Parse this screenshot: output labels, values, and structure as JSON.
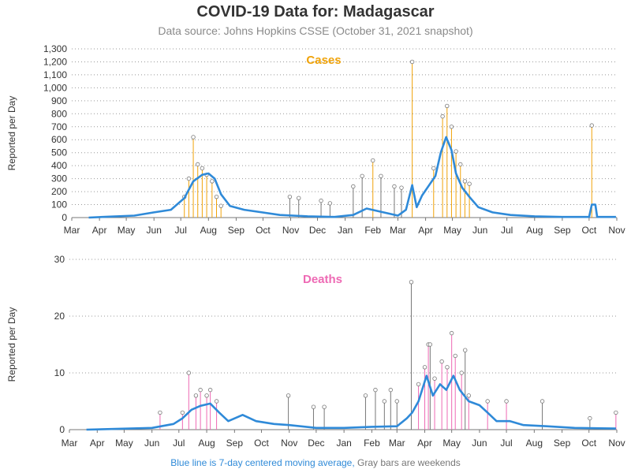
{
  "header": {
    "title": "COVID-19 Data for: Madagascar",
    "subtitle": "Data source: Johns Hopkins CSSE (October 31, 2021 snapshot)"
  },
  "footer": {
    "blue_text": "Blue line is 7-day centered moving average,",
    "gray_text": "Gray bars are weekends"
  },
  "colors": {
    "cases": "#f0a30a",
    "deaths": "#ee69b4",
    "average": "#2f8ad8",
    "weekend": "#777777"
  },
  "chart_data": [
    {
      "type": "bar",
      "title": "Cases",
      "ylabel": "Reported per Day",
      "ylim": [
        0,
        1300
      ],
      "yticks": [
        "0",
        "100",
        "200",
        "300",
        "400",
        "500",
        "600",
        "700",
        "800",
        "900",
        "1,000",
        "1,100",
        "1,200",
        "1,300"
      ],
      "ytick_values": [
        0,
        100,
        200,
        300,
        400,
        500,
        600,
        700,
        800,
        900,
        1000,
        1100,
        1200,
        1300
      ],
      "xticks": [
        "Mar",
        "Apr",
        "May",
        "Jun",
        "Jul",
        "Aug",
        "Sep",
        "Oct",
        "Nov",
        "Dec",
        "Jan",
        "Feb",
        "Mar",
        "Apr",
        "May",
        "Jun",
        "Jul",
        "Aug",
        "Sep",
        "Oct",
        "Nov"
      ],
      "x_range": [
        "2020-03-01",
        "2021-11-01"
      ],
      "grid": "horizontal dotted",
      "series": [
        {
          "name": "Daily",
          "kind": "bars",
          "points": [
            [
              "2020-07-05",
              160
            ],
            [
              "2020-07-10",
              300
            ],
            [
              "2020-07-15",
              620
            ],
            [
              "2020-07-20",
              410
            ],
            [
              "2020-07-25",
              380
            ],
            [
              "2020-07-30",
              330
            ],
            [
              "2020-08-05",
              280
            ],
            [
              "2020-08-10",
              160
            ],
            [
              "2020-08-15",
              90
            ],
            [
              "2021-02-01",
              440
            ],
            [
              "2021-03-17",
              1200
            ],
            [
              "2021-04-10",
              380
            ],
            [
              "2021-04-20",
              780
            ],
            [
              "2021-04-25",
              860
            ],
            [
              "2021-04-30",
              700
            ],
            [
              "2021-05-05",
              510
            ],
            [
              "2021-05-10",
              410
            ],
            [
              "2021-05-15",
              280
            ],
            [
              "2021-05-20",
              260
            ],
            [
              "2021-10-04",
              710
            ]
          ]
        },
        {
          "name": "Weekend",
          "kind": "bars",
          "points": [
            [
              "2021-01-10",
              240
            ],
            [
              "2021-01-20",
              320
            ],
            [
              "2021-02-10",
              320
            ],
            [
              "2021-02-25",
              240
            ],
            [
              "2021-03-05",
              230
            ],
            [
              "2020-10-31",
              160
            ],
            [
              "2020-11-10",
              150
            ],
            [
              "2020-12-05",
              130
            ],
            [
              "2020-12-15",
              110
            ]
          ]
        },
        {
          "name": "7-day centered moving average",
          "kind": "line",
          "points": [
            [
              "2020-03-20",
              0
            ],
            [
              "2020-04-15",
              8
            ],
            [
              "2020-05-10",
              15
            ],
            [
              "2020-06-01",
              40
            ],
            [
              "2020-06-20",
              60
            ],
            [
              "2020-07-05",
              150
            ],
            [
              "2020-07-15",
              280
            ],
            [
              "2020-07-25",
              330
            ],
            [
              "2020-08-01",
              340
            ],
            [
              "2020-08-08",
              300
            ],
            [
              "2020-08-15",
              180
            ],
            [
              "2020-08-25",
              90
            ],
            [
              "2020-09-10",
              60
            ],
            [
              "2020-09-30",
              40
            ],
            [
              "2020-10-20",
              20
            ],
            [
              "2020-11-20",
              10
            ],
            [
              "2020-12-20",
              5
            ],
            [
              "2021-01-10",
              20
            ],
            [
              "2021-01-25",
              70
            ],
            [
              "2021-02-10",
              45
            ],
            [
              "2021-03-01",
              15
            ],
            [
              "2021-03-10",
              60
            ],
            [
              "2021-03-17",
              250
            ],
            [
              "2021-03-22",
              80
            ],
            [
              "2021-03-28",
              170
            ],
            [
              "2021-04-05",
              250
            ],
            [
              "2021-04-12",
              320
            ],
            [
              "2021-04-18",
              500
            ],
            [
              "2021-04-24",
              620
            ],
            [
              "2021-04-30",
              520
            ],
            [
              "2021-05-05",
              340
            ],
            [
              "2021-05-12",
              230
            ],
            [
              "2021-05-20",
              160
            ],
            [
              "2021-05-30",
              80
            ],
            [
              "2021-06-15",
              40
            ],
            [
              "2021-07-05",
              20
            ],
            [
              "2021-08-01",
              10
            ],
            [
              "2021-09-01",
              5
            ],
            [
              "2021-10-01",
              5
            ],
            [
              "2021-10-04",
              100
            ],
            [
              "2021-10-08",
              100
            ],
            [
              "2021-10-10",
              5
            ],
            [
              "2021-10-31",
              5
            ]
          ]
        }
      ]
    },
    {
      "type": "bar",
      "title": "Deaths",
      "ylabel": "Reported per Day",
      "ylim": [
        0,
        30
      ],
      "yticks": [
        "0",
        "10",
        "20",
        "30"
      ],
      "ytick_values": [
        0,
        10,
        20,
        30
      ],
      "xticks": [
        "Mar",
        "Apr",
        "May",
        "Jun",
        "Jul",
        "Aug",
        "Sep",
        "Oct",
        "Nov",
        "Dec",
        "Jan",
        "Feb",
        "Mar",
        "Apr",
        "May",
        "Jun",
        "Jul",
        "Aug",
        "Sep",
        "Oct",
        "Nov"
      ],
      "x_range": [
        "2020-03-01",
        "2021-11-01"
      ],
      "grid": "horizontal dotted",
      "series": [
        {
          "name": "Daily",
          "kind": "bars",
          "points": [
            [
              "2020-06-10",
              3
            ],
            [
              "2020-07-05",
              3
            ],
            [
              "2020-07-12",
              10
            ],
            [
              "2020-07-20",
              6
            ],
            [
              "2020-07-25",
              7
            ],
            [
              "2020-08-01",
              6
            ],
            [
              "2020-08-05",
              7
            ],
            [
              "2020-08-12",
              5
            ],
            [
              "2021-03-25",
              8
            ],
            [
              "2021-04-01",
              11
            ],
            [
              "2021-04-05",
              15
            ],
            [
              "2021-04-12",
              9
            ],
            [
              "2021-04-20",
              12
            ],
            [
              "2021-04-26",
              11
            ],
            [
              "2021-05-01",
              17
            ],
            [
              "2021-05-05",
              13
            ],
            [
              "2021-05-12",
              10
            ],
            [
              "2021-05-20",
              6
            ],
            [
              "2021-06-10",
              5
            ],
            [
              "2021-07-01",
              5
            ],
            [
              "2021-10-31",
              3
            ]
          ]
        },
        {
          "name": "Weekend",
          "kind": "bars",
          "points": [
            [
              "2020-10-31",
              6
            ],
            [
              "2020-11-28",
              4
            ],
            [
              "2020-12-10",
              4
            ],
            [
              "2021-01-25",
              6
            ],
            [
              "2021-02-05",
              7
            ],
            [
              "2021-02-15",
              5
            ],
            [
              "2021-02-22",
              7
            ],
            [
              "2021-03-01",
              5
            ],
            [
              "2021-03-17",
              26
            ],
            [
              "2021-04-07",
              15
            ],
            [
              "2021-05-16",
              14
            ],
            [
              "2021-08-10",
              5
            ],
            [
              "2021-10-02",
              2
            ]
          ]
        },
        {
          "name": "7-day centered moving average",
          "kind": "line",
          "points": [
            [
              "2020-03-20",
              0
            ],
            [
              "2020-06-01",
              0.3
            ],
            [
              "2020-06-25",
              1
            ],
            [
              "2020-07-05",
              2
            ],
            [
              "2020-07-15",
              3.5
            ],
            [
              "2020-07-25",
              4.2
            ],
            [
              "2020-08-05",
              4.6
            ],
            [
              "2020-08-15",
              3
            ],
            [
              "2020-08-25",
              1.5
            ],
            [
              "2020-09-10",
              2.6
            ],
            [
              "2020-09-25",
              1.5
            ],
            [
              "2020-10-15",
              1
            ],
            [
              "2020-11-01",
              0.8
            ],
            [
              "2020-12-01",
              0.3
            ],
            [
              "2021-01-01",
              0.3
            ],
            [
              "2021-02-01",
              0.5
            ],
            [
              "2021-03-01",
              0.6
            ],
            [
              "2021-03-12",
              2
            ],
            [
              "2021-03-18",
              3
            ],
            [
              "2021-03-25",
              5
            ],
            [
              "2021-04-03",
              9.5
            ],
            [
              "2021-04-10",
              6
            ],
            [
              "2021-04-18",
              8
            ],
            [
              "2021-04-25",
              7
            ],
            [
              "2021-05-03",
              9.5
            ],
            [
              "2021-05-10",
              7
            ],
            [
              "2021-05-20",
              5
            ],
            [
              "2021-06-01",
              4.3
            ],
            [
              "2021-06-10",
              3
            ],
            [
              "2021-06-20",
              1.5
            ],
            [
              "2021-07-05",
              1.5
            ],
            [
              "2021-07-20",
              0.8
            ],
            [
              "2021-08-15",
              0.6
            ],
            [
              "2021-09-15",
              0.3
            ],
            [
              "2021-10-31",
              0.2
            ]
          ]
        }
      ]
    }
  ]
}
